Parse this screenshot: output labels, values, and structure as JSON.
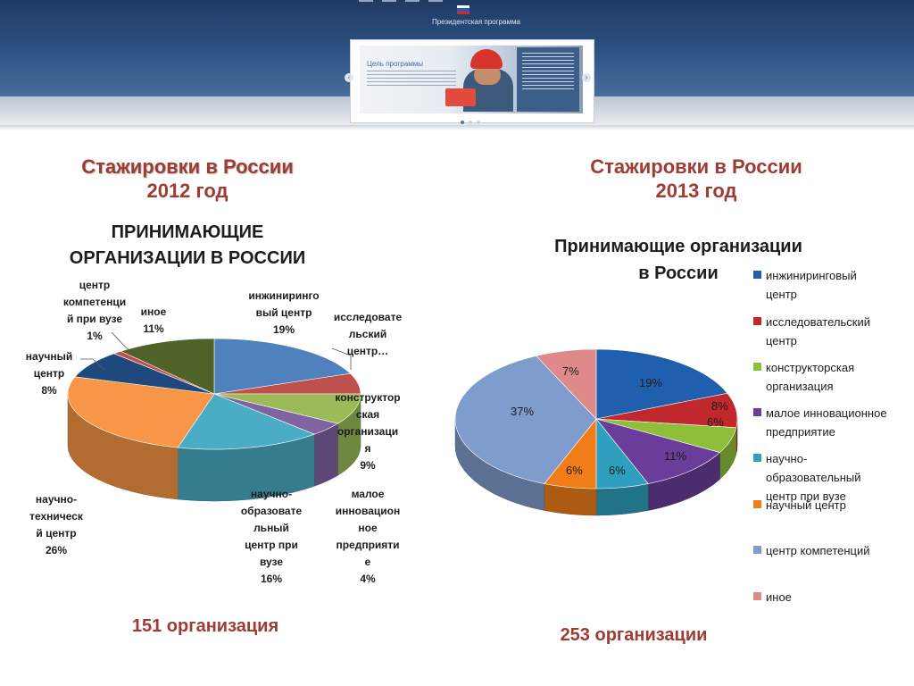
{
  "header": {
    "program_title": "Президентская программа",
    "colors": {
      "top": "#1f3a63",
      "bottom": "#4a6e9d"
    },
    "slide_caption": "Цель программы",
    "arrow_left": "‹",
    "arrow_right": "›"
  },
  "left": {
    "title": "Стажировки в России",
    "year": "2012 год",
    "subtitle_line1": "ПРИНИМАЮЩИЕ",
    "subtitle_line2": "ОРГАНИЗАЦИИ В РОССИИ",
    "total": "151 организация"
  },
  "right": {
    "title": "Стажировки в России",
    "year": "2013 год",
    "subtitle_line1": "Принимающие организации",
    "subtitle_line2": "в России",
    "total": "253 организации"
  },
  "chart_data": [
    {
      "type": "pie",
      "title": "ПРИНИМАЮЩИЕ ОРГАНИЗАЦИИ В РОССИИ",
      "slices": [
        {
          "label": "инжиниринговый центр",
          "value": 19,
          "color": "#4f81bd"
        },
        {
          "label": "исследовательский центр…",
          "value": 6,
          "color": "#c0504d"
        },
        {
          "label": "конструкторская организация",
          "value": 9,
          "color": "#9bbb59"
        },
        {
          "label": "малое инновационное предприятие",
          "value": 4,
          "color": "#8064a2"
        },
        {
          "label": "научно-образовательный центр при вузе",
          "value": 16,
          "color": "#4bacc6"
        },
        {
          "label": "научно-технический центр",
          "value": 26,
          "color": "#f79646"
        },
        {
          "label": "научный центр",
          "value": 8,
          "color": "#1f497d"
        },
        {
          "label": "центр компетенций при вузе",
          "value": 1,
          "color": "#c0504d"
        },
        {
          "label": "иное",
          "value": 11,
          "color": "#4f6228"
        }
      ],
      "labels_text": {
        "inzh": [
          "инжиниринго",
          "вый центр",
          "19%"
        ],
        "issl": [
          "исследовате",
          "льский",
          "центр…"
        ],
        "konstr": [
          "конструктор",
          "ская",
          "организаци",
          "я",
          "9%"
        ],
        "maloe": [
          "малое",
          "инновацион",
          "ное",
          "предприяти",
          "е",
          "4%"
        ],
        "nauchobr": [
          "научно-",
          "образовате",
          "льный",
          "центр при",
          "вузе",
          "16%"
        ],
        "nauchtekh": [
          "научно-",
          "техническ",
          "й центр",
          "26%"
        ],
        "nauch": [
          "научный",
          "центр",
          "8%"
        ],
        "kompet": [
          "центр",
          "компетенци",
          "й при вузе",
          "1%"
        ],
        "inoe": [
          "иное",
          "11%"
        ]
      }
    },
    {
      "type": "pie",
      "title": "Принимающие организации в России",
      "legend": "right",
      "slices": [
        {
          "label": "инжиниринговый центр",
          "value": 19,
          "pct_label": "19%",
          "color": "#1f5fad"
        },
        {
          "label": "исследовательский центр",
          "value": 8,
          "pct_label": "8%",
          "color": "#c0282d"
        },
        {
          "label": "конструкторская организация",
          "value": 6,
          "pct_label": "6%",
          "color": "#8fbf3a"
        },
        {
          "label": "малое инновационное предприятие",
          "value": 11,
          "pct_label": "11%",
          "color": "#6a3d9a"
        },
        {
          "label": "научно-образовательный центр при вузе",
          "value": 6,
          "pct_label": "6%",
          "color": "#2ea0bd"
        },
        {
          "label": "научный центр",
          "value": 6,
          "pct_label": "6%",
          "color": "#f07d1a"
        },
        {
          "label": "центр компетенций",
          "value": 37,
          "pct_label": "37%",
          "color": "#7e9ccc"
        },
        {
          "label": "иное",
          "value": 7,
          "pct_label": "7%",
          "color": "#e0898a"
        }
      ],
      "legend_items": [
        [
          "инжиниринговый",
          "центр"
        ],
        [
          "исследовательский",
          "центр"
        ],
        [
          "конструкторская",
          "организация"
        ],
        [
          "малое инновационное",
          "предприятие"
        ],
        [
          "научно-",
          "образовательный",
          "центр при вузе"
        ],
        [
          "научный центр"
        ],
        [
          "центр компетенций"
        ],
        [
          "иное"
        ]
      ]
    }
  ]
}
